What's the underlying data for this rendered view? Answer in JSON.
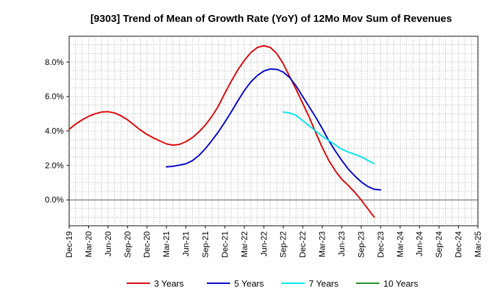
{
  "chart_data": {
    "type": "line",
    "title": "[9303]  Trend of Mean of Growth Rate (YoY) of 12Mo Mov Sum of Revenues",
    "xlabel": "",
    "ylabel": "",
    "ylim": [
      -1.5,
      9.5
    ],
    "yticks": [
      0,
      2,
      4,
      6,
      8
    ],
    "ytick_labels": [
      "0.0%",
      "2.0%",
      "4.0%",
      "6.0%",
      "8.0%"
    ],
    "xtick_labels": [
      "Dec-19",
      "Mar-20",
      "Jun-20",
      "Sep-20",
      "Dec-20",
      "Mar-21",
      "Jun-21",
      "Sep-21",
      "Dec-21",
      "Mar-22",
      "Jun-22",
      "Sep-22",
      "Dec-22",
      "Mar-23",
      "Jun-23",
      "Sep-23",
      "Dec-23",
      "Mar-24",
      "Jun-24",
      "Sep-24",
      "Dec-24",
      "Mar-25"
    ],
    "grid": true,
    "legend_position": "bottom",
    "series": [
      {
        "name": "3 Years",
        "color": "#dd0000",
        "start_index": 0,
        "values": [
          4.1,
          4.4,
          4.65,
          4.85,
          5.0,
          5.1,
          5.12,
          5.05,
          4.88,
          4.65,
          4.35,
          4.05,
          3.8,
          3.6,
          3.42,
          3.25,
          3.18,
          3.22,
          3.38,
          3.62,
          3.95,
          4.35,
          4.85,
          5.45,
          6.2,
          6.9,
          7.55,
          8.1,
          8.55,
          8.85,
          8.95,
          8.85,
          8.5,
          7.9,
          7.15,
          6.4,
          5.6,
          4.8,
          3.9,
          3.05,
          2.3,
          1.7,
          1.2,
          0.85,
          0.45,
          0.0,
          -0.5,
          -1.0
        ]
      },
      {
        "name": "5 Years",
        "color": "#0000cc",
        "start_index": 15,
        "values": [
          1.92,
          1.95,
          2.02,
          2.1,
          2.28,
          2.58,
          2.98,
          3.45,
          3.95,
          4.52,
          5.12,
          5.75,
          6.35,
          6.85,
          7.22,
          7.48,
          7.6,
          7.58,
          7.42,
          7.1,
          6.6,
          6.0,
          5.4,
          4.8,
          4.15,
          3.45,
          2.85,
          2.3,
          1.8,
          1.4,
          1.05,
          0.78,
          0.62,
          0.58
        ]
      },
      {
        "name": "7 Years",
        "color": "#00e5ee",
        "start_index": 33,
        "values": [
          5.1,
          5.05,
          4.9,
          4.6,
          4.3,
          4.0,
          3.7,
          3.45,
          3.2,
          2.95,
          2.78,
          2.65,
          2.5,
          2.3,
          2.1
        ]
      },
      {
        "name": "10 Years",
        "color": "#228b22",
        "start_index": 0,
        "values": []
      }
    ]
  }
}
